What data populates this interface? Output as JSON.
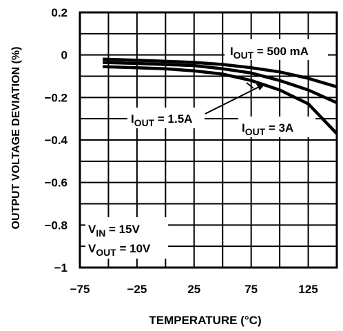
{
  "chart_data": {
    "type": "line",
    "title": "",
    "xlabel": "TEMPERATURE (°C)",
    "ylabel": "OUTPUT VOLTAGE DEVIATION (%)",
    "xlim": [
      -75,
      150
    ],
    "ylim": [
      -1,
      0.2
    ],
    "x_ticks": [
      -75,
      -25,
      25,
      75,
      125
    ],
    "x_tick_labels": [
      "−75",
      "−25",
      "25",
      "75",
      "125"
    ],
    "y_ticks": [
      0.2,
      0,
      -0.2,
      -0.4,
      -0.6,
      -0.8,
      -1
    ],
    "y_tick_labels": [
      "0.2",
      "0",
      "−0.2",
      "−0.4",
      "−0.6",
      "−0.8",
      "−1"
    ],
    "grid": true,
    "series": [
      {
        "name": "I_OUT = 500 mA",
        "x": [
          -55,
          -25,
          0,
          25,
          50,
          75,
          100,
          125,
          150
        ],
        "y": [
          -0.02,
          -0.025,
          -0.03,
          -0.035,
          -0.045,
          -0.06,
          -0.08,
          -0.11,
          -0.15
        ]
      },
      {
        "name": "I_OUT = 1.5A",
        "x": [
          -55,
          -25,
          0,
          25,
          50,
          75,
          100,
          125,
          150
        ],
        "y": [
          -0.035,
          -0.04,
          -0.045,
          -0.05,
          -0.065,
          -0.085,
          -0.12,
          -0.165,
          -0.225
        ]
      },
      {
        "name": "I_OUT = 3A",
        "x": [
          -55,
          -25,
          0,
          25,
          50,
          75,
          100,
          125,
          150
        ],
        "y": [
          -0.055,
          -0.06,
          -0.065,
          -0.075,
          -0.09,
          -0.12,
          -0.165,
          -0.23,
          -0.37
        ]
      }
    ],
    "curve_labels": [
      {
        "main": "I",
        "sub": "OUT",
        "rest": " = 500 mA"
      },
      {
        "main": "I",
        "sub": "OUT",
        "rest": " = 1.5A"
      },
      {
        "main": "I",
        "sub": "OUT",
        "rest": " = 3A"
      }
    ],
    "conditions": [
      {
        "main": "V",
        "sub": "IN",
        "rest": " = 15V"
      },
      {
        "main": "V",
        "sub": "OUT",
        "rest": " = 10V"
      }
    ]
  }
}
